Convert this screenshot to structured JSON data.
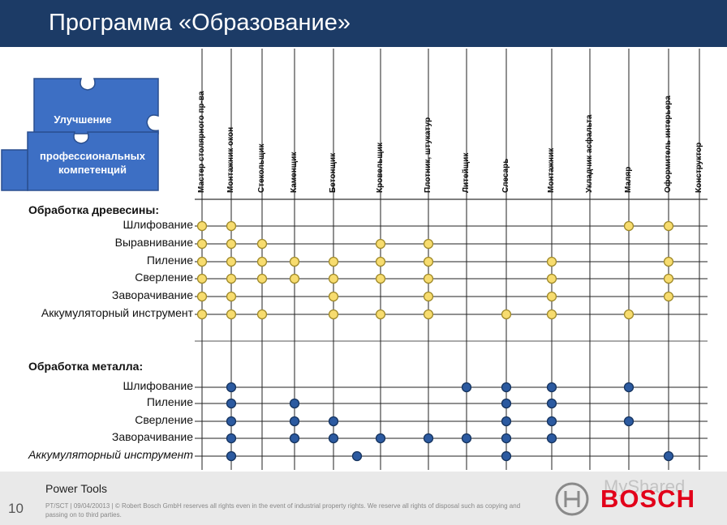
{
  "title": "Программа «Образование»",
  "puzzle": {
    "line1": "Улучшение",
    "line2": "профессиональных компетенций"
  },
  "columns": [
    "Мастер столярного пр-ва",
    "Монтажник окон",
    "Стекольщик",
    "Каменщик",
    "Бетонщик",
    "Кровельщик",
    "Плотник, штукатур",
    "Литейщик",
    "Слесарь",
    "Монтажник",
    "Укладчик асфальта",
    "Маляр",
    "Оформитель интерьера",
    "Конструктор"
  ],
  "sections": [
    {
      "title": "Обработка древесины:",
      "marker": "yellow",
      "rows": [
        {
          "label": "Шлифование",
          "marks": [
            0,
            1,
            11,
            12
          ]
        },
        {
          "label": "Выравнивание",
          "marks": [
            0,
            1,
            2,
            5,
            6
          ]
        },
        {
          "label": "Пиление",
          "marks": [
            0,
            1,
            2,
            3,
            4,
            5,
            6,
            9,
            12
          ]
        },
        {
          "label": "Сверление",
          "marks": [
            0,
            1,
            2,
            3,
            4,
            5,
            6,
            9,
            12
          ]
        },
        {
          "label": "Заворачивание",
          "marks": [
            0,
            1,
            4,
            6,
            9,
            12
          ]
        },
        {
          "label": "Аккумуляторный инструмент",
          "marks": [
            0,
            1,
            2,
            4,
            5,
            6,
            8,
            9,
            11
          ]
        }
      ]
    },
    {
      "title": "Обработка металла:",
      "marker": "blue",
      "rows": [
        {
          "label": "Шлифование",
          "marks": [
            1,
            7,
            8,
            9,
            11
          ]
        },
        {
          "label": "Пиление",
          "marks": [
            1,
            3,
            8,
            9
          ]
        },
        {
          "label": "Сверление",
          "marks": [
            1,
            3,
            4,
            8,
            9,
            11
          ]
        },
        {
          "label": "Заворачивание",
          "marks": [
            1,
            3,
            4,
            5,
            6,
            7,
            8,
            9
          ]
        },
        {
          "label": "Аккумуляторный инструмент",
          "italic": true,
          "marks": [
            1,
            "4.5",
            8,
            12
          ]
        }
      ]
    }
  ],
  "colors": {
    "header": "#1c3b66",
    "yellow_fill": "#f7dc6f",
    "yellow_stroke": "#a08a2a",
    "blue_fill": "#2c5aa0",
    "blue_stroke": "#16345f",
    "puzzle": "#3d6fc4",
    "bosch_red": "#e2001a"
  },
  "footer": {
    "page_number": "10",
    "section": "Power Tools",
    "copyright": "PT/SCT | 09/04/20013 | © Robert Bosch GmbH reserves all rights even in the event of industrial property rights. We reserve all rights of disposal such as copying and passing on to third parties.",
    "brand": "BOSCH",
    "watermark": "MyShared"
  }
}
